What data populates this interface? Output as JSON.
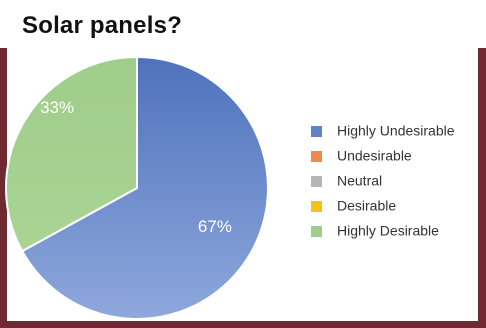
{
  "title": "Solar panels?",
  "chart_data": {
    "type": "pie",
    "title": "Solar panels?",
    "categories": [
      "Highly Undesirable",
      "Undesirable",
      "Neutral",
      "Desirable",
      "Highly Desirable"
    ],
    "values": [
      67,
      0,
      0,
      0,
      33
    ],
    "value_labels": [
      "67%",
      "",
      "",
      "",
      "33%"
    ],
    "colors": [
      "#5f82c8",
      "#f08a4b",
      "#b5b5b5",
      "#f5c21b",
      "#9fcd8a"
    ],
    "legend_position": "right"
  }
}
